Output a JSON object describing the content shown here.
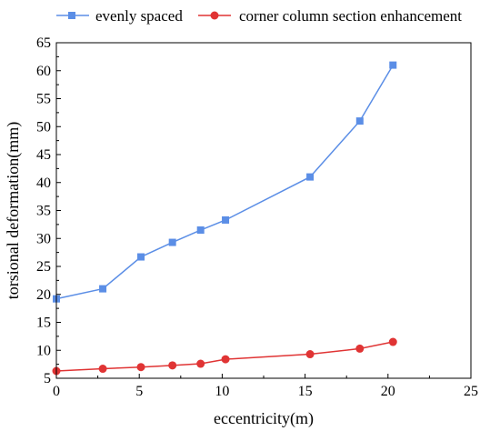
{
  "chart_data": {
    "type": "line",
    "xlabel": "eccentricity(m)",
    "ylabel": "torsional deformation(mm)",
    "xlim": [
      0,
      25
    ],
    "ylim": [
      5,
      65
    ],
    "xticks": [
      0,
      5,
      10,
      15,
      20,
      25
    ],
    "yticks": [
      5,
      10,
      15,
      20,
      25,
      30,
      35,
      40,
      45,
      50,
      55,
      60,
      65
    ],
    "grid": false,
    "legend_position": "top",
    "series": [
      {
        "name": "evenly spaced",
        "color": "#5b8ee6",
        "marker": "square",
        "x": [
          0,
          2.8,
          5.1,
          7.0,
          8.7,
          10.2,
          15.3,
          18.3,
          20.3
        ],
        "y": [
          19.2,
          21.0,
          26.7,
          29.3,
          31.5,
          33.3,
          41.0,
          51.0,
          61.0
        ]
      },
      {
        "name": "corner column section enhancement",
        "color": "#e03434",
        "marker": "circle",
        "x": [
          0,
          2.8,
          5.1,
          7.0,
          8.7,
          10.2,
          15.3,
          18.3,
          20.3
        ],
        "y": [
          6.3,
          6.7,
          7.0,
          7.3,
          7.6,
          8.4,
          9.3,
          10.3,
          11.5
        ]
      }
    ]
  }
}
